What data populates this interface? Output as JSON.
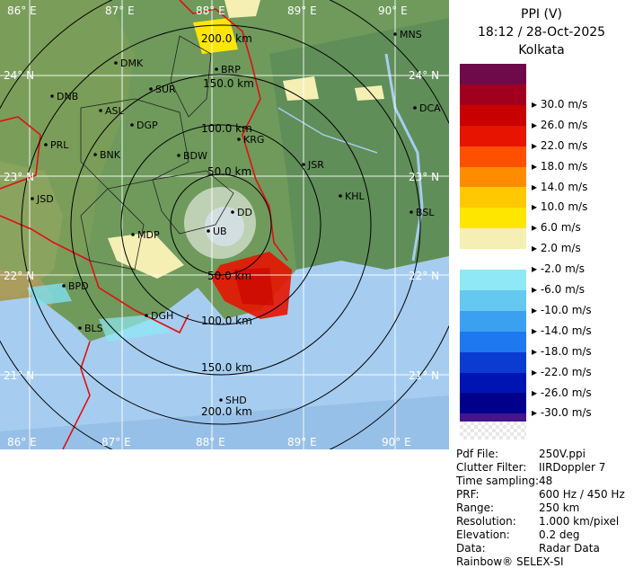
{
  "header": {
    "product": "PPI (V)",
    "datetime": "18:12 / 28-Oct-2025",
    "station": "Kolkata"
  },
  "legend": [
    {
      "color": "#6e0a4a",
      "label": ""
    },
    {
      "color": "#a0001e",
      "label": "30.0 m/s"
    },
    {
      "color": "#c80000",
      "label": "26.0 m/s"
    },
    {
      "color": "#e61400",
      "label": "22.0 m/s"
    },
    {
      "color": "#ff5000",
      "label": "18.0 m/s"
    },
    {
      "color": "#ff8c00",
      "label": "14.0 m/s"
    },
    {
      "color": "#ffc800",
      "label": "10.0 m/s"
    },
    {
      "color": "#ffe600",
      "label": "6.0 m/s"
    },
    {
      "color": "#f5efb4",
      "label": "2.0 m/s"
    },
    {
      "color": "#ffffff",
      "label": "-2.0 m/s"
    },
    {
      "color": "#8ee8f5",
      "label": "-6.0 m/s"
    },
    {
      "color": "#64c8f0",
      "label": "-10.0 m/s"
    },
    {
      "color": "#3ca0f0",
      "label": "-14.0 m/s"
    },
    {
      "color": "#1e78f0",
      "label": "-18.0 m/s"
    },
    {
      "color": "#0a3cd2",
      "label": "-22.0 m/s"
    },
    {
      "color": "#0014b4",
      "label": "-26.0 m/s"
    },
    {
      "color": "#00008c",
      "label": "-30.0 m/s"
    },
    {
      "color": "#46148c",
      "label": ""
    }
  ],
  "metadata": [
    {
      "key": "Pdf File:",
      "value": "250V.ppi"
    },
    {
      "key": "Clutter Filter:",
      "value": "IIRDoppler 7"
    },
    {
      "key": "Time sampling:",
      "value": "48"
    },
    {
      "key": "PRF:",
      "value": "600 Hz / 450 Hz"
    },
    {
      "key": "Range:",
      "value": "250 km"
    },
    {
      "key": "Resolution:",
      "value": "1.000 km/pixel"
    },
    {
      "key": "Elevation:",
      "value": "0.2 deg"
    },
    {
      "key": "Data:",
      "value": "Radar Data"
    }
  ],
  "footer": "Rainbow® SELEX-SI",
  "map": {
    "lon_labels": [
      "86° E",
      "87° E",
      "88° E",
      "89° E",
      "90° E"
    ],
    "lat_labels": [
      "24° N",
      "23° N",
      "22° N",
      "21° N"
    ],
    "range_labels": [
      "50.0 km",
      "100.0 km",
      "150.0 km",
      "200.0 km"
    ],
    "stations": [
      "DMK",
      "DNB",
      "SUR",
      "BRP",
      "ASL",
      "DGP",
      "PRL",
      "BNK",
      "KRG",
      "BDW",
      "JSR",
      "KHL",
      "JSD",
      "DD",
      "MDP",
      "UB",
      "BSL",
      "BPD",
      "BLS",
      "DGH",
      "SHD",
      "MNS",
      "DCA"
    ]
  }
}
